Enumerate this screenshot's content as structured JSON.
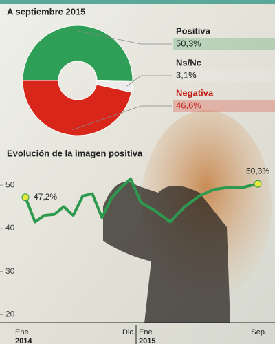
{
  "chart_data": [
    {
      "type": "pie",
      "title": "A septiembre 2015",
      "categories": [
        "Positiva",
        "Ns/Nc",
        "Negativa"
      ],
      "values": [
        50.3,
        3.1,
        46.6
      ],
      "value_labels": [
        "50,3%",
        "3,1%",
        "46,6%"
      ],
      "colors": [
        "#2f9e57",
        "#ececec",
        "#d8261b"
      ],
      "label_colors": [
        "#222222",
        "#222222",
        "#c21f17"
      ]
    },
    {
      "type": "line",
      "title": "Evolución de la imagen positiva",
      "categories": [
        "Ene.",
        null,
        null,
        null,
        null,
        null,
        null,
        null,
        null,
        null,
        null,
        "Dic.",
        "Ene.",
        null,
        null,
        null,
        null,
        null,
        null,
        null,
        "Sep."
      ],
      "years": [
        "2014",
        "2015"
      ],
      "values": [
        47.2,
        41.5,
        43,
        43.2,
        45,
        43,
        47.5,
        48,
        42.5,
        47,
        49.5,
        51.5,
        46,
        44,
        41.5,
        45,
        47.5,
        49,
        49.5,
        49.5,
        50.3
      ],
      "value_labels": [
        "47,2%",
        null,
        null,
        null,
        null,
        null,
        null,
        null,
        null,
        null,
        null,
        null,
        null,
        null,
        null,
        null,
        null,
        null,
        null,
        null,
        "50,3%"
      ],
      "color": "#2e9a4f",
      "ylim": [
        18,
        54
      ],
      "yticks": [
        20,
        30,
        40,
        50
      ]
    }
  ]
}
